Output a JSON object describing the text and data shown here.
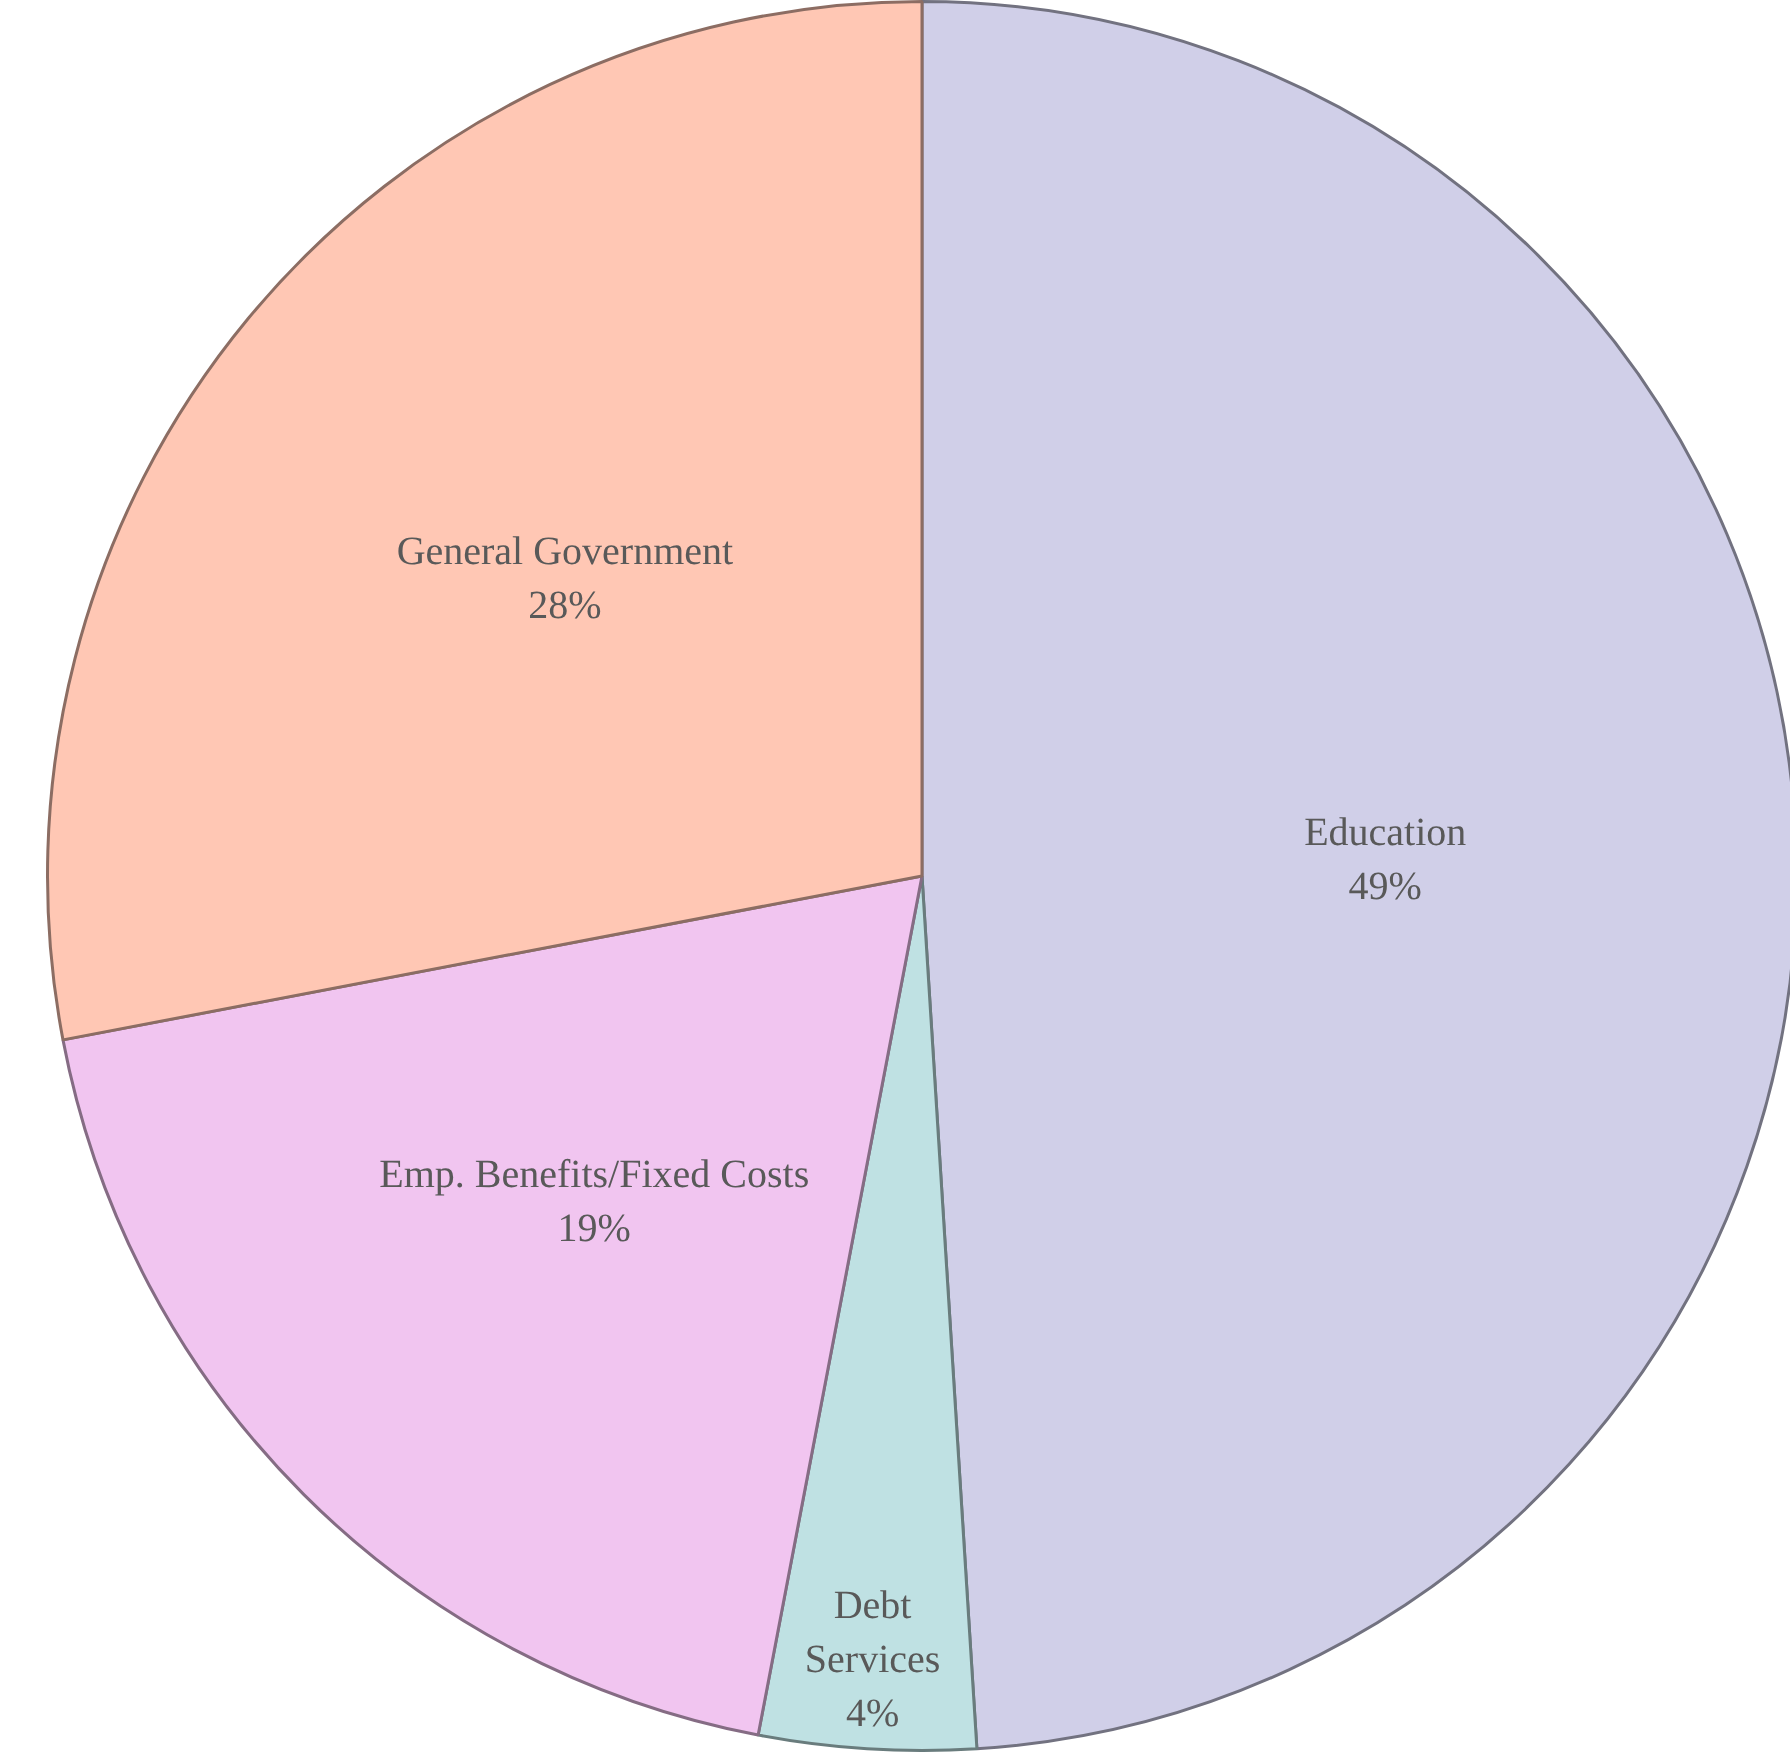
{
  "chart_data": {
    "type": "pie",
    "categories": [
      "Education",
      "Debt Services",
      "Emp. Benefits/Fixed Costs",
      "General Government"
    ],
    "values": [
      49,
      4,
      19,
      28
    ],
    "value_labels": [
      "49%",
      "4%",
      "19%",
      "28%"
    ],
    "colors": [
      "#d0cfe8",
      "#bfe1e3",
      "#f1c5f0",
      "#ffc7b4"
    ],
    "legend": false
  }
}
